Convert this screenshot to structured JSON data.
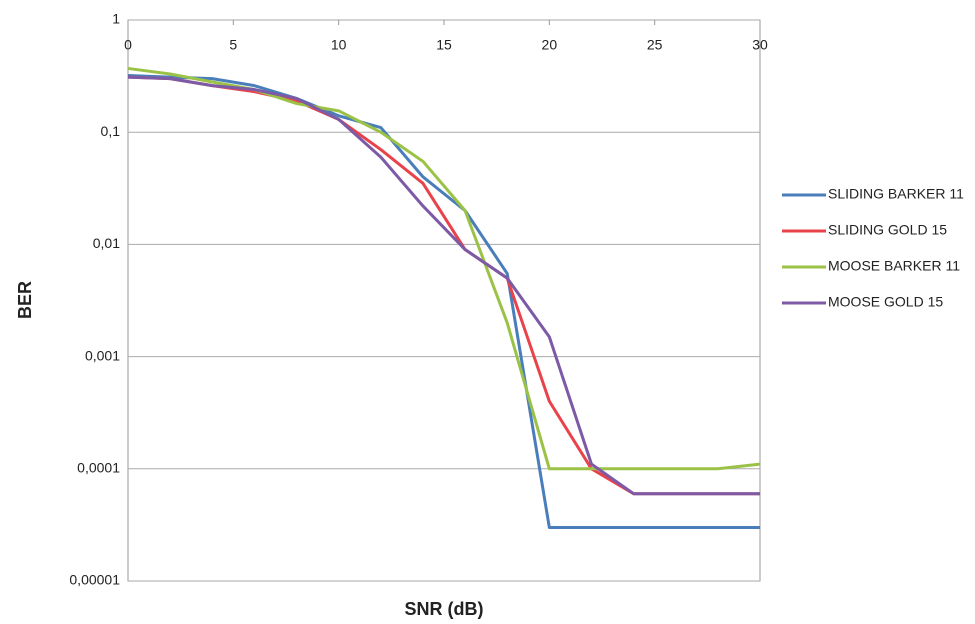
{
  "chart_data": {
    "type": "line",
    "xlabel": "SNR (dB)",
    "ylabel": "BER",
    "x": [
      0,
      2,
      4,
      6,
      8,
      10,
      12,
      14,
      16,
      18,
      20,
      22,
      24,
      26,
      28,
      30
    ],
    "xlim": [
      0,
      30
    ],
    "xticks": [
      0,
      5,
      10,
      15,
      20,
      25,
      30
    ],
    "ylim": [
      1e-05,
      1
    ],
    "log_y": true,
    "grid": true,
    "legend": "right",
    "yticks": [
      {
        "value": 1e-05,
        "label": "0,00001"
      },
      {
        "value": 0.0001,
        "label": "0,0001"
      },
      {
        "value": 0.001,
        "label": "0,001"
      },
      {
        "value": 0.01,
        "label": "0,01"
      },
      {
        "value": 0.1,
        "label": "0,1"
      },
      1
    ],
    "series": [
      {
        "name": "SLIDING BARKER 11",
        "color": "#4a7ebb",
        "values": [
          0.32,
          0.31,
          0.3,
          0.26,
          0.2,
          0.14,
          0.11,
          0.04,
          0.02,
          0.0055,
          3e-05,
          3e-05,
          3e-05,
          3e-05,
          3e-05,
          3e-05
        ]
      },
      {
        "name": "SLIDING GOLD 15",
        "color": "#e8434a",
        "values": [
          0.31,
          0.3,
          0.26,
          0.23,
          0.19,
          0.13,
          0.07,
          0.035,
          0.009,
          0.005,
          0.0004,
          0.0001,
          6e-05,
          6e-05,
          6e-05,
          6e-05
        ]
      },
      {
        "name": "MOOSE BARKER 11",
        "color": "#9bc246",
        "values": [
          0.37,
          0.33,
          0.28,
          0.24,
          0.18,
          0.155,
          0.1,
          0.055,
          0.02,
          0.002,
          0.0001,
          0.0001,
          0.0001,
          0.0001,
          0.0001,
          0.00011
        ]
      },
      {
        "name": "MOOSE GOLD 15",
        "color": "#7d5aa6",
        "values": [
          0.31,
          0.3,
          0.26,
          0.24,
          0.2,
          0.13,
          0.06,
          0.022,
          0.009,
          0.005,
          0.0015,
          0.00011,
          6e-05,
          6e-05,
          6e-05,
          6e-05
        ]
      }
    ]
  }
}
